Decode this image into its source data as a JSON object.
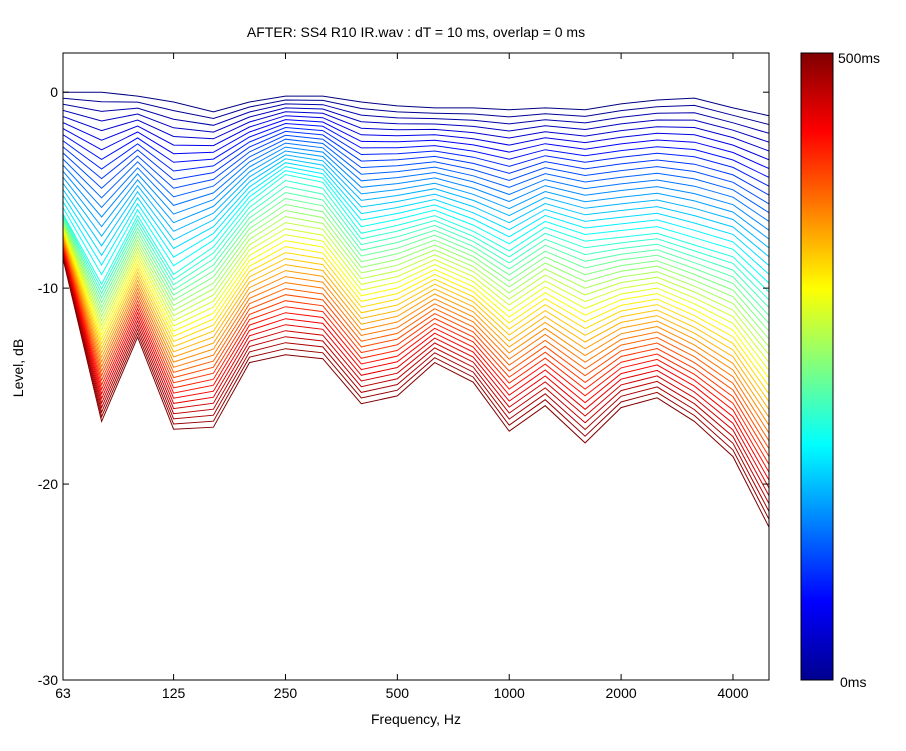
{
  "chart_data": {
    "type": "line",
    "title": "AFTER: SS4 R10 IR.wav : dT = 10 ms, overlap = 0 ms",
    "xlabel": "Frequency, Hz",
    "ylabel": "Level, dB",
    "x_scale": "log",
    "x_tick_labels": [
      "63",
      "125",
      "250",
      "500",
      "1000",
      "2000",
      "4000"
    ],
    "y_tick_labels": [
      "0",
      "-10",
      "-20",
      "-30"
    ],
    "y_ticks": [
      0,
      -10,
      -20,
      -30
    ],
    "ylim": [
      -30,
      2
    ],
    "grid": false,
    "colorbar": {
      "colormap": "jet",
      "min_label": "0ms",
      "max_label": "500ms",
      "range_ms": [
        0,
        500
      ]
    },
    "series_time_ms": [
      0,
      10,
      20,
      30,
      40,
      50,
      60,
      70,
      80,
      90,
      100,
      110,
      120,
      130,
      140,
      150,
      160,
      170,
      180,
      190,
      200,
      210,
      220,
      230,
      240,
      250,
      260,
      270,
      280,
      290,
      300,
      310,
      320,
      330,
      340,
      350,
      360,
      370,
      380,
      390,
      400,
      410,
      420,
      430,
      440,
      450,
      460,
      470,
      480,
      490,
      500
    ],
    "x": [
      63,
      80,
      100,
      125,
      160,
      200,
      250,
      315,
      400,
      500,
      630,
      800,
      1000,
      1250,
      1600,
      2000,
      2500,
      3150,
      4000,
      5000
    ],
    "profiles": {
      "early": [
        0,
        0,
        -0.2,
        -0.5,
        -1,
        -0.5,
        -0.2,
        -0.2,
        -0.5,
        -0.7,
        -0.8,
        -0.8,
        -0.9,
        -0.8,
        -0.9,
        -0.6,
        -0.4,
        -0.3,
        -0.8,
        -1.2
      ],
      "mid": [
        -6.2,
        -9.8,
        -6.3,
        -9.3,
        -7.9,
        -5.6,
        -4.2,
        -4.6,
        -7.2,
        -6.8,
        -6.3,
        -7.1,
        -8.1,
        -6.9,
        -7.6,
        -7.4,
        -7.2,
        -7.8,
        -8.4,
        -10.2
      ],
      "late": [
        -8.5,
        -16.8,
        -12.5,
        -17.2,
        -17.1,
        -13.8,
        -13.4,
        -13.6,
        -15.9,
        -15.5,
        -13.8,
        -14.8,
        -17.3,
        -16,
        -17.9,
        -16.1,
        -15.6,
        -16.8,
        -18.6,
        -22.2
      ]
    }
  }
}
